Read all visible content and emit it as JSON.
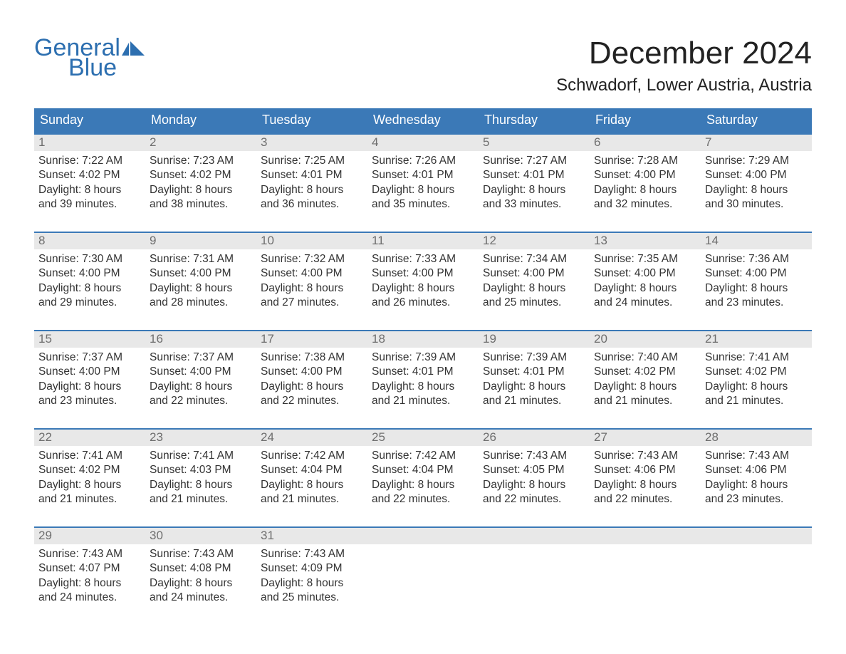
{
  "logo": {
    "text_general": "General",
    "text_blue": "Blue",
    "brand_color": "#2d6fb0"
  },
  "title": "December 2024",
  "location": "Schwadorf, Lower Austria, Austria",
  "colors": {
    "header_bg": "#3b79b7",
    "header_text": "#ffffff",
    "week_border": "#3b79b7",
    "daynum_bg": "#e8e8e8",
    "daynum_text": "#6e6e6e",
    "body_text": "#333333",
    "background": "#ffffff"
  },
  "font": {
    "family": "Arial",
    "title_size_pt": 33,
    "location_size_pt": 18,
    "weekday_size_pt": 14,
    "body_size_pt": 12
  },
  "weekdays": [
    "Sunday",
    "Monday",
    "Tuesday",
    "Wednesday",
    "Thursday",
    "Friday",
    "Saturday"
  ],
  "labels": {
    "sunrise": "Sunrise:",
    "sunset": "Sunset:",
    "daylight": "Daylight:"
  },
  "weeks": [
    [
      {
        "n": "1",
        "sunrise": "7:22 AM",
        "sunset": "4:02 PM",
        "daylight1": "8 hours",
        "daylight2": "and 39 minutes."
      },
      {
        "n": "2",
        "sunrise": "7:23 AM",
        "sunset": "4:02 PM",
        "daylight1": "8 hours",
        "daylight2": "and 38 minutes."
      },
      {
        "n": "3",
        "sunrise": "7:25 AM",
        "sunset": "4:01 PM",
        "daylight1": "8 hours",
        "daylight2": "and 36 minutes."
      },
      {
        "n": "4",
        "sunrise": "7:26 AM",
        "sunset": "4:01 PM",
        "daylight1": "8 hours",
        "daylight2": "and 35 minutes."
      },
      {
        "n": "5",
        "sunrise": "7:27 AM",
        "sunset": "4:01 PM",
        "daylight1": "8 hours",
        "daylight2": "and 33 minutes."
      },
      {
        "n": "6",
        "sunrise": "7:28 AM",
        "sunset": "4:00 PM",
        "daylight1": "8 hours",
        "daylight2": "and 32 minutes."
      },
      {
        "n": "7",
        "sunrise": "7:29 AM",
        "sunset": "4:00 PM",
        "daylight1": "8 hours",
        "daylight2": "and 30 minutes."
      }
    ],
    [
      {
        "n": "8",
        "sunrise": "7:30 AM",
        "sunset": "4:00 PM",
        "daylight1": "8 hours",
        "daylight2": "and 29 minutes."
      },
      {
        "n": "9",
        "sunrise": "7:31 AM",
        "sunset": "4:00 PM",
        "daylight1": "8 hours",
        "daylight2": "and 28 minutes."
      },
      {
        "n": "10",
        "sunrise": "7:32 AM",
        "sunset": "4:00 PM",
        "daylight1": "8 hours",
        "daylight2": "and 27 minutes."
      },
      {
        "n": "11",
        "sunrise": "7:33 AM",
        "sunset": "4:00 PM",
        "daylight1": "8 hours",
        "daylight2": "and 26 minutes."
      },
      {
        "n": "12",
        "sunrise": "7:34 AM",
        "sunset": "4:00 PM",
        "daylight1": "8 hours",
        "daylight2": "and 25 minutes."
      },
      {
        "n": "13",
        "sunrise": "7:35 AM",
        "sunset": "4:00 PM",
        "daylight1": "8 hours",
        "daylight2": "and 24 minutes."
      },
      {
        "n": "14",
        "sunrise": "7:36 AM",
        "sunset": "4:00 PM",
        "daylight1": "8 hours",
        "daylight2": "and 23 minutes."
      }
    ],
    [
      {
        "n": "15",
        "sunrise": "7:37 AM",
        "sunset": "4:00 PM",
        "daylight1": "8 hours",
        "daylight2": "and 23 minutes."
      },
      {
        "n": "16",
        "sunrise": "7:37 AM",
        "sunset": "4:00 PM",
        "daylight1": "8 hours",
        "daylight2": "and 22 minutes."
      },
      {
        "n": "17",
        "sunrise": "7:38 AM",
        "sunset": "4:00 PM",
        "daylight1": "8 hours",
        "daylight2": "and 22 minutes."
      },
      {
        "n": "18",
        "sunrise": "7:39 AM",
        "sunset": "4:01 PM",
        "daylight1": "8 hours",
        "daylight2": "and 21 minutes."
      },
      {
        "n": "19",
        "sunrise": "7:39 AM",
        "sunset": "4:01 PM",
        "daylight1": "8 hours",
        "daylight2": "and 21 minutes."
      },
      {
        "n": "20",
        "sunrise": "7:40 AM",
        "sunset": "4:02 PM",
        "daylight1": "8 hours",
        "daylight2": "and 21 minutes."
      },
      {
        "n": "21",
        "sunrise": "7:41 AM",
        "sunset": "4:02 PM",
        "daylight1": "8 hours",
        "daylight2": "and 21 minutes."
      }
    ],
    [
      {
        "n": "22",
        "sunrise": "7:41 AM",
        "sunset": "4:02 PM",
        "daylight1": "8 hours",
        "daylight2": "and 21 minutes."
      },
      {
        "n": "23",
        "sunrise": "7:41 AM",
        "sunset": "4:03 PM",
        "daylight1": "8 hours",
        "daylight2": "and 21 minutes."
      },
      {
        "n": "24",
        "sunrise": "7:42 AM",
        "sunset": "4:04 PM",
        "daylight1": "8 hours",
        "daylight2": "and 21 minutes."
      },
      {
        "n": "25",
        "sunrise": "7:42 AM",
        "sunset": "4:04 PM",
        "daylight1": "8 hours",
        "daylight2": "and 22 minutes."
      },
      {
        "n": "26",
        "sunrise": "7:43 AM",
        "sunset": "4:05 PM",
        "daylight1": "8 hours",
        "daylight2": "and 22 minutes."
      },
      {
        "n": "27",
        "sunrise": "7:43 AM",
        "sunset": "4:06 PM",
        "daylight1": "8 hours",
        "daylight2": "and 22 minutes."
      },
      {
        "n": "28",
        "sunrise": "7:43 AM",
        "sunset": "4:06 PM",
        "daylight1": "8 hours",
        "daylight2": "and 23 minutes."
      }
    ],
    [
      {
        "n": "29",
        "sunrise": "7:43 AM",
        "sunset": "4:07 PM",
        "daylight1": "8 hours",
        "daylight2": "and 24 minutes."
      },
      {
        "n": "30",
        "sunrise": "7:43 AM",
        "sunset": "4:08 PM",
        "daylight1": "8 hours",
        "daylight2": "and 24 minutes."
      },
      {
        "n": "31",
        "sunrise": "7:43 AM",
        "sunset": "4:09 PM",
        "daylight1": "8 hours",
        "daylight2": "and 25 minutes."
      },
      {
        "empty": true
      },
      {
        "empty": true
      },
      {
        "empty": true
      },
      {
        "empty": true
      }
    ]
  ]
}
